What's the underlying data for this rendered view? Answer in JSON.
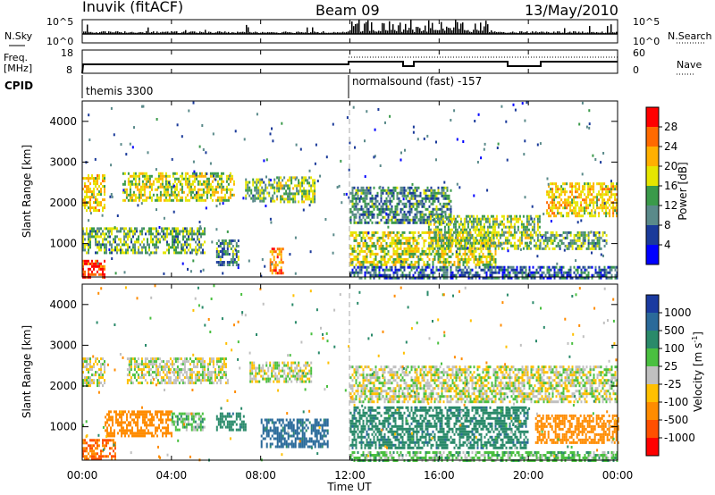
{
  "header": {
    "station": "Inuvik (fitACF)",
    "beam": "Beam 09",
    "date": "13/May/2010"
  },
  "summary": {
    "nsky_label": "N.Sky",
    "nsky_ticks": [
      "10^5",
      "10^0"
    ],
    "nsearch_label": "N.Search",
    "nsearch_ticks": [
      "10^5",
      "10^0"
    ],
    "freq_label_1": "Freq.",
    "freq_label_2": "[MHz]",
    "freq_ticks": [
      "18",
      "8"
    ],
    "nave_label": "Nave",
    "nave_ticks": [
      "60",
      "0"
    ],
    "cpid_label": "CPID",
    "cpid_1": "themis 3300",
    "cpid_2": "normalsound (fast) -157"
  },
  "x_axis": {
    "label": "Time UT",
    "ticks": [
      "00:00",
      "04:00",
      "08:00",
      "12:00",
      "16:00",
      "20:00",
      "00:00"
    ]
  },
  "power_panel": {
    "ylabel": "Slant Range [km]",
    "yticks": [
      "4000",
      "3000",
      "2000",
      "1000"
    ],
    "cbar_label": "Power [dB]",
    "cbar_ticks": [
      "28",
      "24",
      "20",
      "16",
      "12",
      "8",
      "4"
    ],
    "cbar_colors": [
      "#ff0000",
      "#ff6a00",
      "#ffb000",
      "#e6e600",
      "#3a9a4a",
      "#5a8a8a",
      "#1a3a9a",
      "#0000ff"
    ]
  },
  "velocity_panel": {
    "ylabel": "Slant Range [km]",
    "yticks": [
      "4000",
      "3000",
      "2000",
      "1000"
    ],
    "cbar_label": "Velocity [m s",
    "cbar_label_sup": "-1",
    "cbar_label_end": "]",
    "cbar_ticks": [
      "1000",
      "500",
      "100",
      "25",
      "-25",
      "-100",
      "-500",
      "-1000"
    ],
    "cbar_colors": [
      "#1a3aa0",
      "#2a6a9a",
      "#2a8a6a",
      "#4ac040",
      "#c0c0c0",
      "#ffc000",
      "#ff8c00",
      "#ff5000",
      "#ff0000"
    ]
  },
  "chart_data": {
    "type": "heatmap",
    "x_range_hours": [
      0,
      24
    ],
    "y_range_km": [
      180,
      4500
    ],
    "panels": [
      {
        "name": "Power [dB]",
        "clusters": [
          {
            "t0": 0.0,
            "t1": 1.0,
            "r0": 1800,
            "r1": 2700,
            "v": 18
          },
          {
            "t0": 1.8,
            "t1": 6.8,
            "r0": 2050,
            "r1": 2750,
            "v": 16
          },
          {
            "t0": 7.3,
            "t1": 8.6,
            "r0": 2050,
            "r1": 2600,
            "v": 12
          },
          {
            "t0": 8.7,
            "t1": 10.4,
            "r0": 2000,
            "r1": 2650,
            "v": 14
          },
          {
            "t0": 0.0,
            "t1": 5.5,
            "r0": 750,
            "r1": 1400,
            "v": 12
          },
          {
            "t0": 6.0,
            "t1": 7.0,
            "r0": 500,
            "r1": 1100,
            "v": 10
          },
          {
            "t0": 8.4,
            "t1": 9.0,
            "r0": 300,
            "r1": 900,
            "v": 22
          },
          {
            "t0": 0.0,
            "t1": 1.0,
            "r0": 180,
            "r1": 600,
            "v": 26
          },
          {
            "t0": 12.0,
            "t1": 16.5,
            "r0": 1500,
            "r1": 2400,
            "v": 10
          },
          {
            "t0": 12.0,
            "t1": 18.5,
            "r0": 500,
            "r1": 1300,
            "v": 16
          },
          {
            "t0": 15.5,
            "t1": 20.5,
            "r0": 900,
            "r1": 1700,
            "v": 14
          },
          {
            "t0": 20.8,
            "t1": 24.0,
            "r0": 1700,
            "r1": 2500,
            "v": 18
          },
          {
            "t0": 20.5,
            "t1": 23.5,
            "r0": 900,
            "r1": 1300,
            "v": 12
          },
          {
            "t0": 12.0,
            "t1": 24.0,
            "r0": 180,
            "r1": 450,
            "v": 8
          }
        ]
      },
      {
        "name": "Velocity [m s^-1]",
        "clusters": [
          {
            "t0": 0.0,
            "t1": 1.0,
            "r0": 2000,
            "r1": 2700,
            "v": 0
          },
          {
            "t0": 2.0,
            "t1": 6.5,
            "r0": 2100,
            "r1": 2700,
            "v": 0
          },
          {
            "t0": 7.5,
            "t1": 10.3,
            "r0": 2100,
            "r1": 2600,
            "v": 0
          },
          {
            "t0": 1.0,
            "t1": 4.0,
            "r0": 800,
            "r1": 1400,
            "v": -300
          },
          {
            "t0": 4.0,
            "t1": 5.5,
            "r0": 900,
            "r1": 1350,
            "v": 60
          },
          {
            "t0": 6.0,
            "t1": 7.3,
            "r0": 900,
            "r1": 1350,
            "v": 200
          },
          {
            "t0": 8.0,
            "t1": 11.0,
            "r0": 500,
            "r1": 1200,
            "v": 300
          },
          {
            "t0": 0.0,
            "t1": 1.5,
            "r0": 180,
            "r1": 700,
            "v": -500
          },
          {
            "t0": 12.0,
            "t1": 24.0,
            "r0": 1600,
            "r1": 2500,
            "v": 0
          },
          {
            "t0": 12.0,
            "t1": 20.0,
            "r0": 500,
            "r1": 1500,
            "v": 200
          },
          {
            "t0": 20.3,
            "t1": 24.0,
            "r0": 600,
            "r1": 1300,
            "v": -300
          },
          {
            "t0": 12.0,
            "t1": 24.0,
            "r0": 180,
            "r1": 400,
            "v": 60
          }
        ]
      }
    ]
  }
}
